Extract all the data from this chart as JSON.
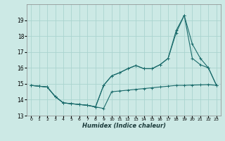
{
  "xlabel": "Humidex (Indice chaleur)",
  "x_labels": [
    "0",
    "1",
    "2",
    "3",
    "4",
    "5",
    "6",
    "7",
    "8",
    "9",
    "10",
    "11",
    "12",
    "13",
    "14",
    "15",
    "16",
    "17",
    "18",
    "19",
    "20",
    "21",
    "22",
    "23"
  ],
  "ylim": [
    13,
    20
  ],
  "yticks": [
    13,
    14,
    15,
    16,
    17,
    18,
    19
  ],
  "xlim": [
    -0.5,
    23.5
  ],
  "background_color": "#cce9e5",
  "grid_color": "#aad4cf",
  "line_color": "#1a6b6b",
  "line1": [
    14.9,
    14.85,
    14.8,
    14.2,
    13.8,
    13.75,
    13.7,
    13.65,
    13.55,
    13.45,
    14.5,
    14.55,
    14.6,
    14.65,
    14.7,
    14.75,
    14.8,
    14.85,
    14.9,
    14.9,
    14.92,
    14.93,
    14.95,
    14.9
  ],
  "line2": [
    14.9,
    14.85,
    14.8,
    14.2,
    13.8,
    13.75,
    13.7,
    13.65,
    13.55,
    14.9,
    15.5,
    15.7,
    15.95,
    16.15,
    15.95,
    15.95,
    16.2,
    16.6,
    18.2,
    19.3,
    16.6,
    16.2,
    16.0,
    14.9
  ],
  "line3": [
    14.9,
    14.85,
    14.8,
    14.2,
    13.8,
    13.75,
    13.7,
    13.65,
    13.55,
    14.9,
    15.5,
    15.7,
    15.95,
    16.15,
    15.95,
    15.95,
    16.2,
    16.6,
    18.35,
    19.3,
    17.5,
    16.6,
    16.0,
    14.9
  ]
}
